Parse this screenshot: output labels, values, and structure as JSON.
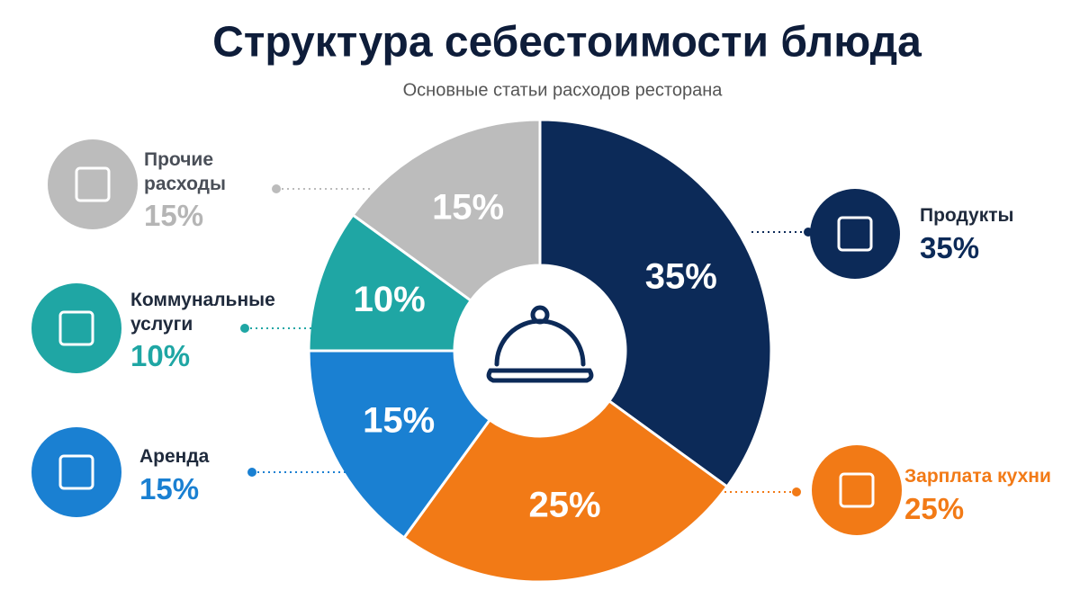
{
  "chart_data": {
    "type": "donut",
    "title": "Структура себестоимости блюда",
    "subtitle": "Основные статьи расходов ресторана",
    "categories": [
      "Продукты",
      "Зарплата кухни",
      "Аренда",
      "Коммунальные услуги",
      "Прочие расходы"
    ],
    "values": [
      35,
      25,
      15,
      10,
      15
    ],
    "value_labels": [
      "35%",
      "25%",
      "15%",
      "10%",
      "15%"
    ],
    "colors": [
      "#0c2a58",
      "#f27a16",
      "#1a80d2",
      "#1fa6a4",
      "#bcbcbc"
    ]
  }
}
